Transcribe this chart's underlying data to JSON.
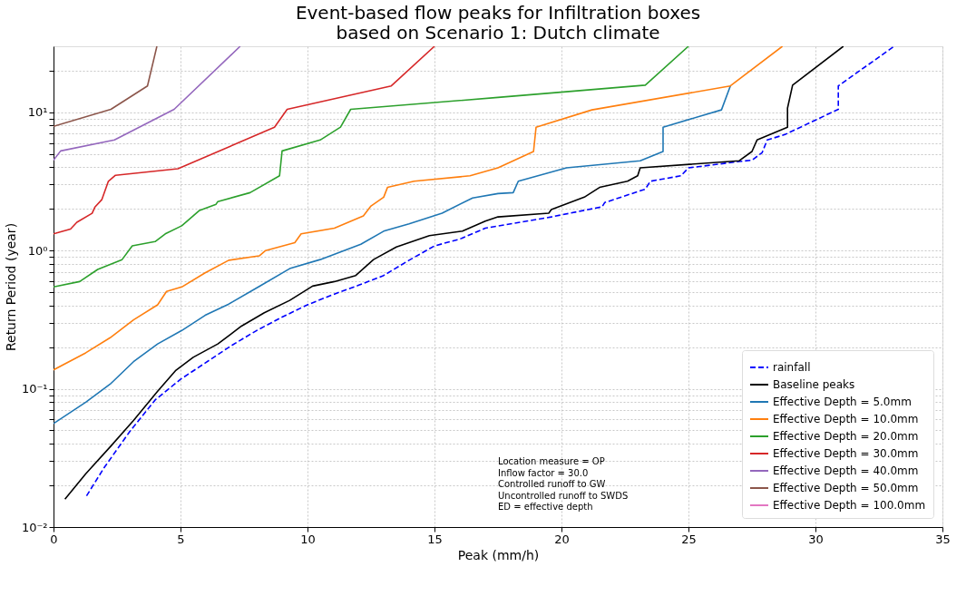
{
  "chart_data": {
    "type": "line",
    "title": "Event-based flow peaks for Infiltration boxes\nbased on Scenario 1: Dutch climate",
    "xlabel": "Peak (mm/h)",
    "ylabel": "Return Period (year)",
    "log": "y",
    "grid": true,
    "legend": "bottom right",
    "xlim": [
      0,
      35
    ],
    "xticks": [
      0,
      5,
      10,
      15,
      20,
      25,
      30,
      35
    ],
    "ylim": [
      0.01,
      30
    ],
    "yticks": [
      {
        "value": 0.01,
        "label": "10⁻²"
      },
      {
        "value": 0.02,
        "label": null
      },
      {
        "value": 0.03,
        "label": null
      },
      {
        "value": 0.04,
        "label": null
      },
      {
        "value": 0.05,
        "label": null
      },
      {
        "value": 0.06,
        "label": null
      },
      {
        "value": 0.07,
        "label": null
      },
      {
        "value": 0.08,
        "label": null
      },
      {
        "value": 0.09,
        "label": null
      },
      {
        "value": 0.1,
        "label": "10⁻¹"
      },
      {
        "value": 0.2,
        "label": null
      },
      {
        "value": 0.3,
        "label": null
      },
      {
        "value": 0.4,
        "label": null
      },
      {
        "value": 0.5,
        "label": null
      },
      {
        "value": 0.6,
        "label": null
      },
      {
        "value": 0.7,
        "label": null
      },
      {
        "value": 0.8,
        "label": null
      },
      {
        "value": 0.9,
        "label": null
      },
      {
        "value": 1,
        "label": "10⁰"
      },
      {
        "value": 2,
        "label": null
      },
      {
        "value": 3,
        "label": null
      },
      {
        "value": 4,
        "label": null
      },
      {
        "value": 5,
        "label": null
      },
      {
        "value": 6,
        "label": null
      },
      {
        "value": 7,
        "label": null
      },
      {
        "value": 8,
        "label": null
      },
      {
        "value": 9,
        "label": null
      },
      {
        "value": 10,
        "label": "10¹"
      },
      {
        "value": 20,
        "label": null
      }
    ],
    "annotations": [
      "Location measure =  OP",
      "Inflow factor =  30.0",
      "Controlled runoff to GW",
      "Uncontrolled runoff to SWDS",
      "ED = effective depth"
    ],
    "series": [
      {
        "name": "rainfall",
        "color": "#0000ff",
        "line_style": "dashed",
        "x": [
          1.3,
          2,
          3,
          4,
          5,
          6,
          7,
          8,
          9,
          10,
          11,
          12,
          13,
          14,
          15,
          16,
          17,
          19.6,
          21.6,
          21.7,
          23.3,
          23.5,
          24.7,
          25.0,
          27.0,
          27.5,
          27.9,
          28.1,
          28.8,
          30.9,
          30.9,
          33.1
        ],
        "values": [
          0.0168,
          0.027,
          0.049,
          0.083,
          0.117,
          0.155,
          0.205,
          0.264,
          0.33,
          0.405,
          0.48,
          0.56,
          0.66,
          0.85,
          1.08,
          1.21,
          1.45,
          1.75,
          2.07,
          2.22,
          2.78,
          3.17,
          3.47,
          3.96,
          4.4,
          4.5,
          5.1,
          6.3,
          6.9,
          10.5,
          15.5,
          30
        ]
      },
      {
        "name": "Baseline peaks",
        "color": "#000000",
        "line_style": "solid",
        "x": [
          0.45,
          1.27,
          2.23,
          3.15,
          4.1,
          4.8,
          5.5,
          6.47,
          7.4,
          8.3,
          9.3,
          10.2,
          11.06,
          11.9,
          12.6,
          13.5,
          14.8,
          16.1,
          17.0,
          17.5,
          19.5,
          19.6,
          20.9,
          21.5,
          22.6,
          23.0,
          23.1,
          27.0,
          27.5,
          27.7,
          28.9,
          28.9,
          29.1,
          31.1
        ],
        "values": [
          0.0159,
          0.0243,
          0.038,
          0.059,
          0.096,
          0.135,
          0.169,
          0.211,
          0.284,
          0.355,
          0.436,
          0.553,
          0.596,
          0.66,
          0.86,
          1.06,
          1.28,
          1.38,
          1.63,
          1.75,
          1.86,
          1.98,
          2.43,
          2.86,
          3.17,
          3.47,
          3.96,
          4.46,
          5.2,
          6.3,
          7.8,
          10.7,
          15.7,
          30
        ]
      },
      {
        "name": "Effective Depth = 5.0mm",
        "color": "#1f77b4",
        "line_style": "solid",
        "x": [
          0,
          1.27,
          2.23,
          3.15,
          4.1,
          5.05,
          5.97,
          6.9,
          8.1,
          9.3,
          10.5,
          12.1,
          13.0,
          14.0,
          15.3,
          16.5,
          17.5,
          18.1,
          18.3,
          20.2,
          23.1,
          24.0,
          24.0,
          26.3,
          26.65
        ],
        "values": [
          0.056,
          0.08,
          0.108,
          0.157,
          0.211,
          0.264,
          0.34,
          0.41,
          0.55,
          0.74,
          0.86,
          1.11,
          1.38,
          1.56,
          1.86,
          2.4,
          2.58,
          2.62,
          3.17,
          3.96,
          4.46,
          5.2,
          7.8,
          10.4,
          15.5
        ]
      },
      {
        "name": "Effective Depth = 10.0mm",
        "color": "#ff7f0e",
        "line_style": "solid",
        "x": [
          0,
          1.27,
          2.23,
          3.15,
          4.1,
          4.45,
          5.05,
          5.97,
          6.9,
          8.1,
          8.35,
          9.5,
          9.75,
          11.06,
          12.2,
          12.5,
          13.0,
          13.15,
          14.2,
          16.4,
          17.5,
          18.9,
          19.0,
          21.2,
          26.65,
          28.7
        ],
        "values": [
          0.137,
          0.182,
          0.234,
          0.315,
          0.405,
          0.506,
          0.545,
          0.69,
          0.85,
          0.915,
          1.0,
          1.14,
          1.32,
          1.45,
          1.78,
          2.1,
          2.43,
          2.86,
          3.17,
          3.47,
          3.96,
          5.2,
          7.8,
          10.4,
          15.5,
          30
        ]
      },
      {
        "name": "Effective Depth = 20.0mm",
        "color": "#2ca02c",
        "line_style": "solid",
        "x": [
          0,
          1.03,
          1.74,
          2.7,
          3.1,
          4.0,
          4.4,
          5.05,
          5.75,
          6.4,
          6.47,
          7.74,
          8.9,
          9.0,
          10.5,
          11.3,
          11.7,
          17.5,
          23.3,
          25.0
        ],
        "values": [
          0.545,
          0.596,
          0.73,
          0.86,
          1.08,
          1.16,
          1.32,
          1.51,
          1.95,
          2.16,
          2.26,
          2.62,
          3.47,
          5.25,
          6.3,
          7.8,
          10.5,
          12.8,
          15.7,
          30
        ]
      },
      {
        "name": "Effective Depth = 30.0mm",
        "color": "#d62728",
        "line_style": "solid",
        "x": [
          0,
          0.67,
          0.92,
          1.52,
          1.63,
          1.9,
          2.16,
          2.44,
          4.9,
          8.7,
          9.2,
          13.3,
          15.0
        ],
        "values": [
          1.32,
          1.43,
          1.6,
          1.86,
          2.06,
          2.33,
          3.17,
          3.5,
          3.9,
          7.8,
          10.5,
          15.5,
          30
        ]
      },
      {
        "name": "Effective Depth = 40.0mm",
        "color": "#9467bd",
        "line_style": "solid",
        "x": [
          0,
          0.28,
          2.4,
          4.75,
          7.35
        ],
        "values": [
          4.5,
          5.25,
          6.3,
          10.5,
          30
        ]
      },
      {
        "name": "Effective Depth = 50.0mm",
        "color": "#8c564b",
        "line_style": "solid",
        "x": [
          0,
          2.26,
          3.7,
          4.07
        ],
        "values": [
          7.9,
          10.5,
          15.5,
          30
        ]
      },
      {
        "name": "Effective Depth = 100.0mm",
        "color": "#e377c2",
        "line_style": "solid"
      }
    ]
  }
}
